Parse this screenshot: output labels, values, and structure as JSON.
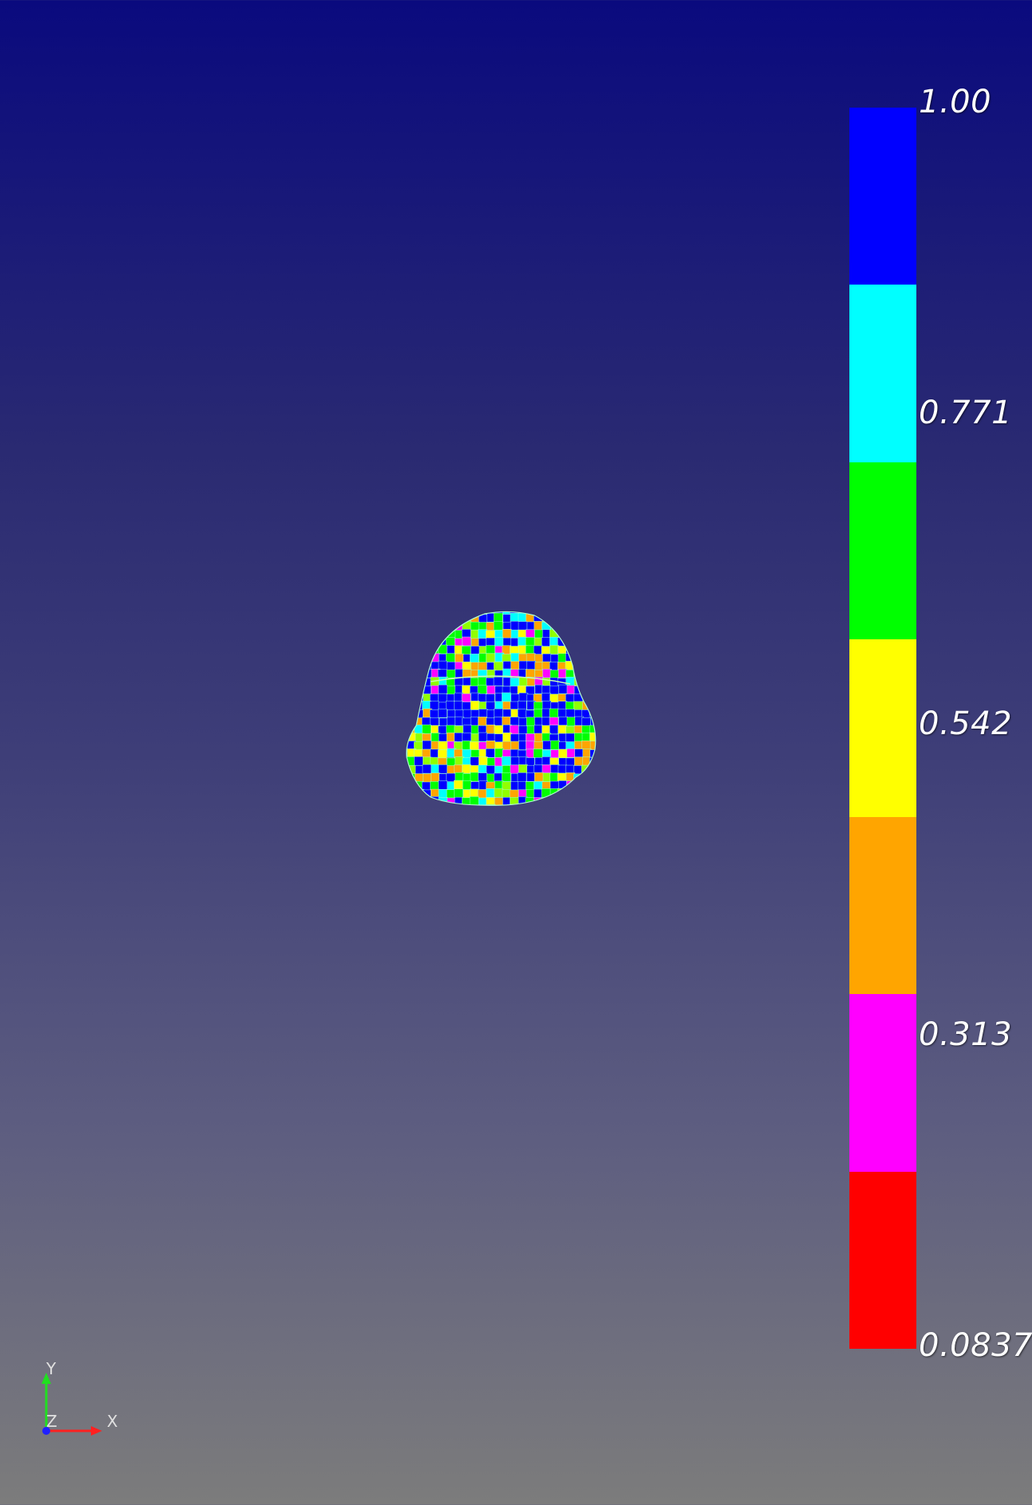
{
  "colorbar": {
    "bands": [
      "#0000ff",
      "#00ffff",
      "#00ff00",
      "#ffff00",
      "#ffa500",
      "#ff00ff",
      "#ff0000"
    ],
    "labels": {
      "max": "1.00",
      "t1": "0.771",
      "t2": "0.542",
      "t3": "0.313",
      "min": "0.0837"
    },
    "range": [
      0.0837,
      1.0
    ]
  },
  "axes": {
    "x_label": "X",
    "y_label": "Y",
    "z_label": "Z",
    "colors": {
      "x": "#ff2020",
      "y": "#20ff20",
      "z": "#2020ff"
    }
  },
  "mesh": {
    "palette": [
      "#0000ff",
      "#0000ff",
      "#0000ff",
      "#00ffff",
      "#00ff00",
      "#00ff00",
      "#ffff00",
      "#ffa500",
      "#ffa500",
      "#ff00ff",
      "#90ff00"
    ],
    "edge_color": "#9fffd0"
  }
}
